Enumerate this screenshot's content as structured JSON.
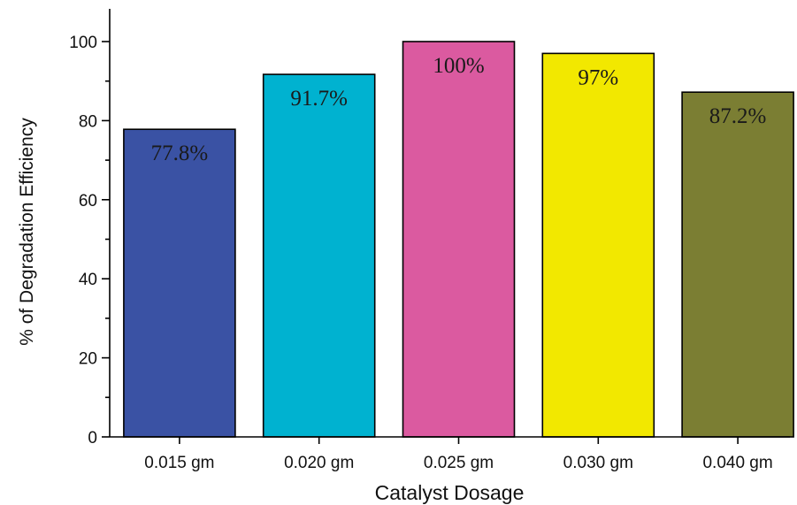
{
  "chart_data": {
    "type": "bar",
    "categories": [
      "0.015 gm",
      "0.020 gm",
      "0.025 gm",
      "0.030 gm",
      "0.040 gm"
    ],
    "values": [
      77.8,
      91.7,
      100,
      97,
      87.2
    ],
    "data_labels": [
      "77.8%",
      "91.7%",
      "100%",
      "97%",
      "87.2%"
    ],
    "colors": [
      "#3a52a4",
      "#00b2d0",
      "#db5aa0",
      "#f2e800",
      "#7b7e33"
    ],
    "xlabel": "Catalyst Dosage",
    "ylabel": "% of Degradation Efficiency",
    "ylim": [
      0,
      108
    ],
    "yticks": [
      0,
      20,
      40,
      60,
      80,
      100
    ],
    "ytick_labels": [
      "0",
      "20",
      "40",
      "60",
      "80",
      "100"
    ],
    "grid": false,
    "legend": "none"
  }
}
